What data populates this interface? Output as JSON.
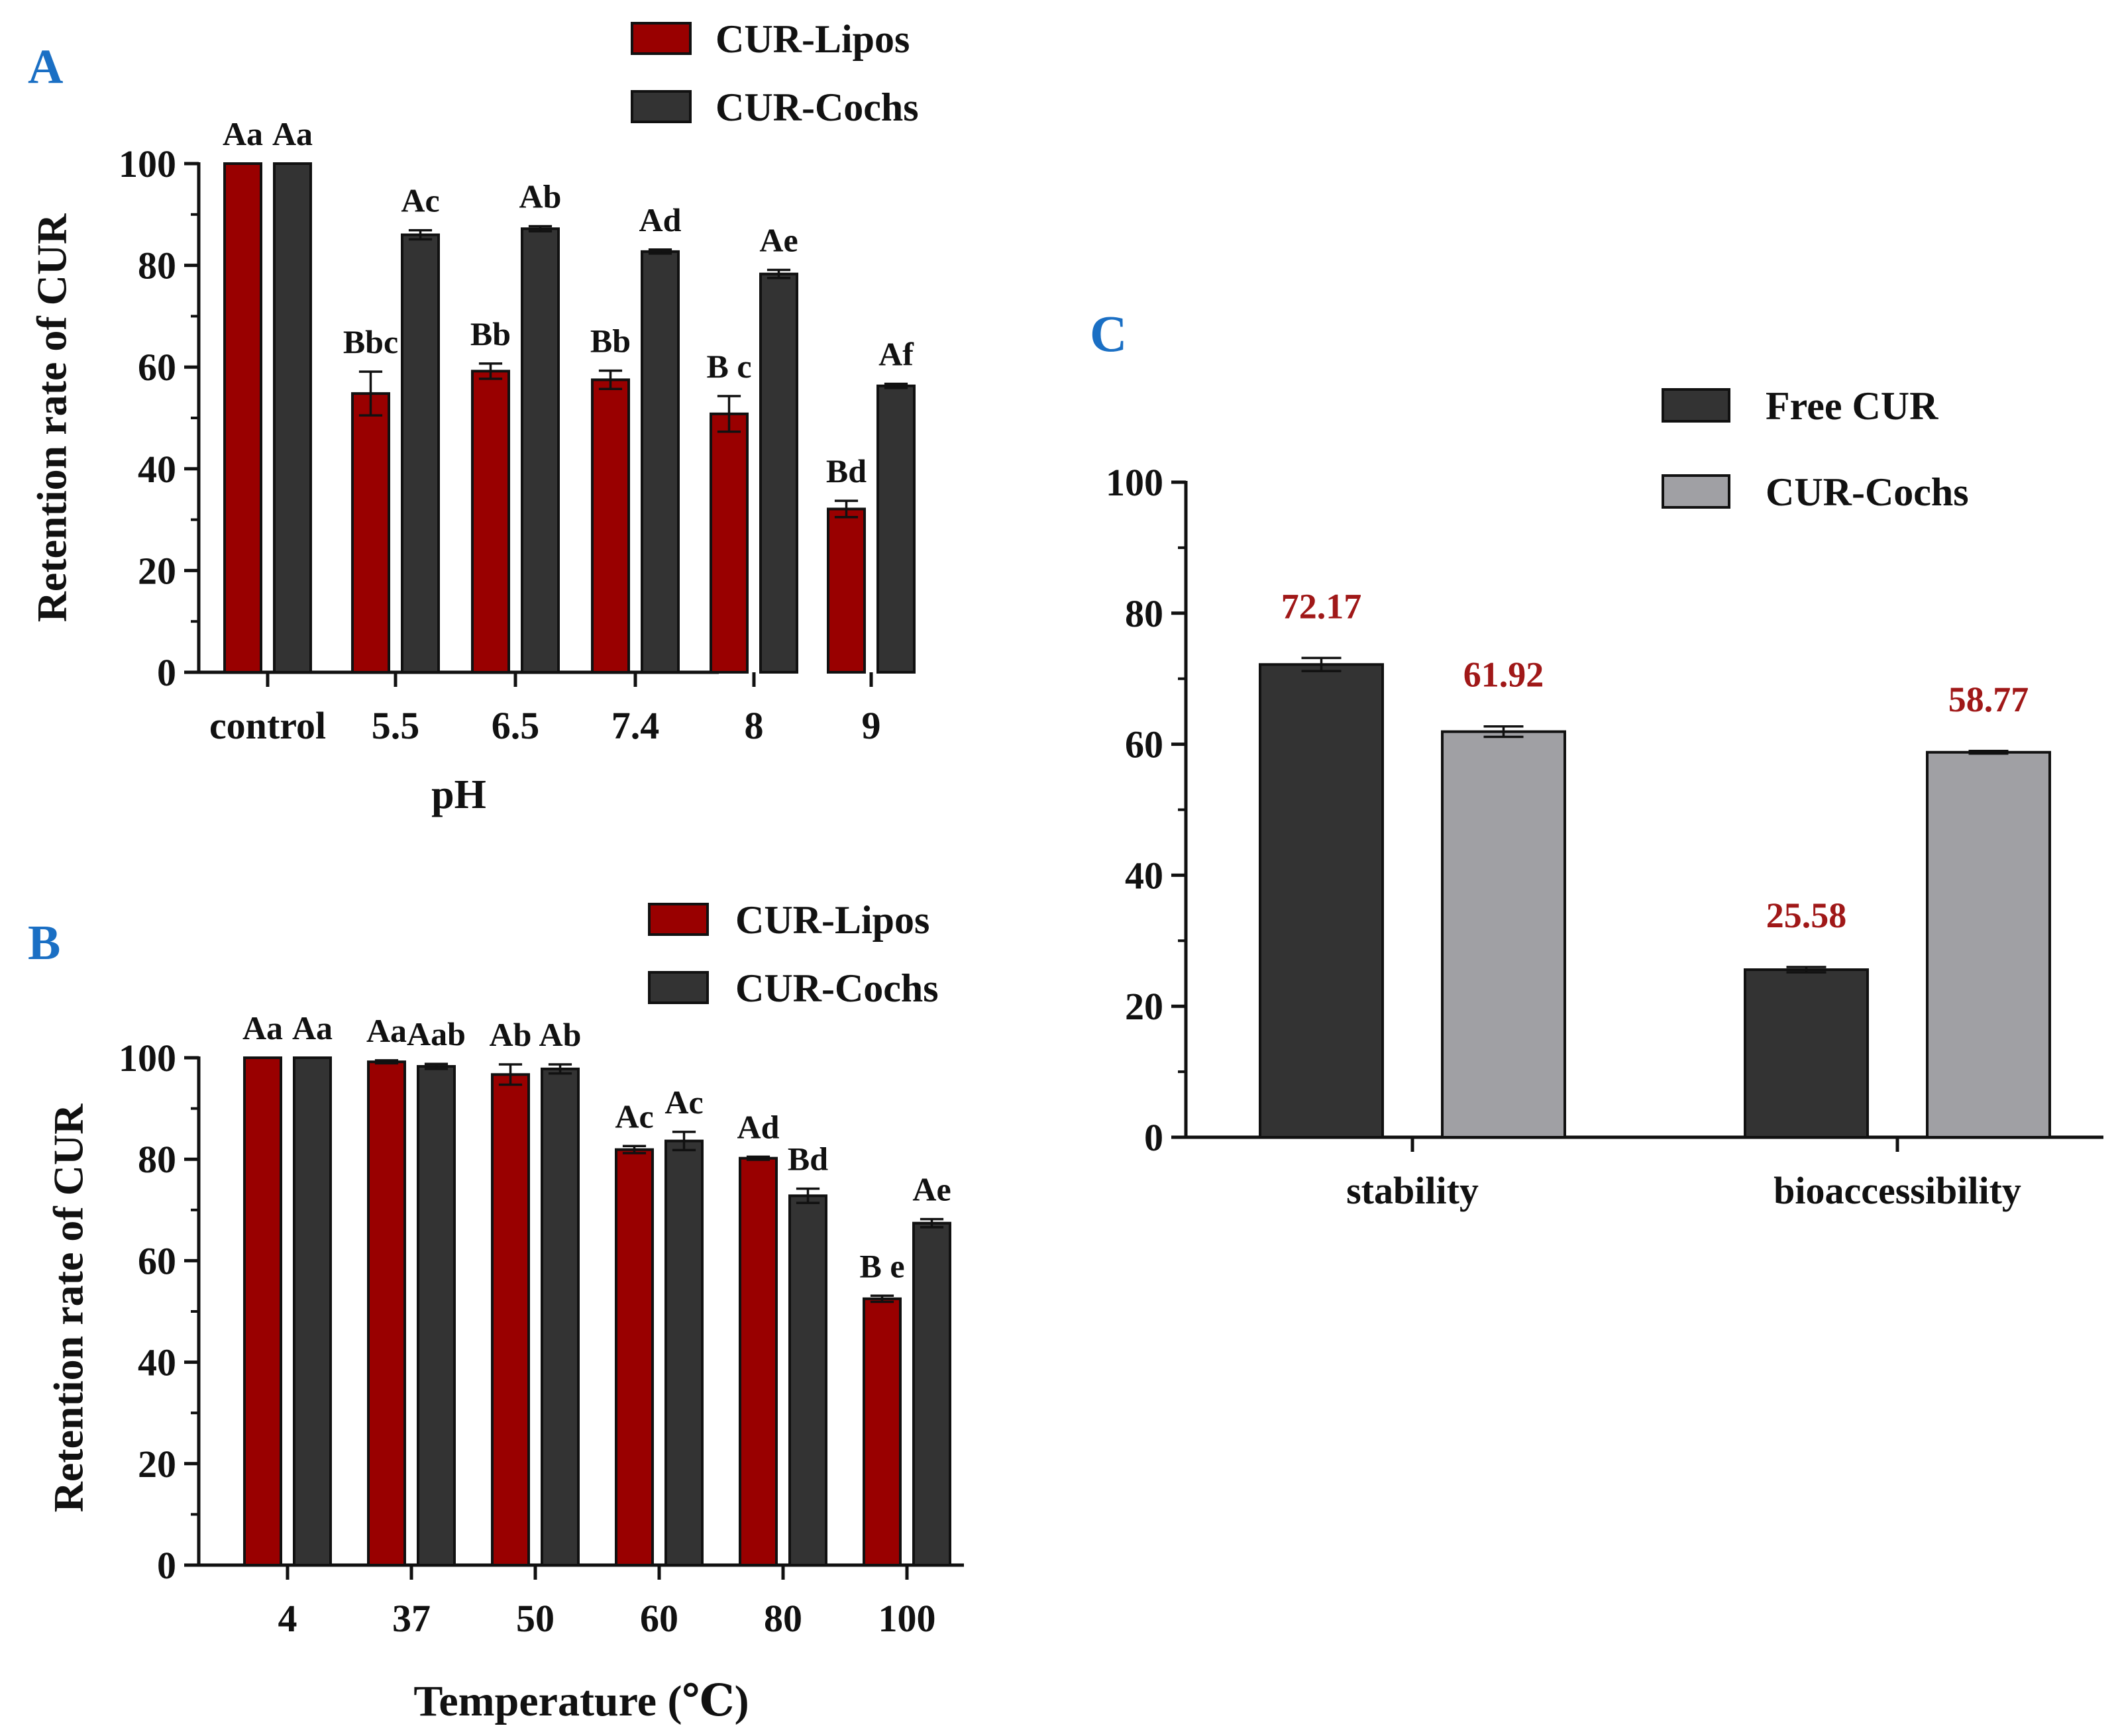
{
  "chart_data": [
    {
      "panel_label": "A",
      "type": "bar",
      "ylabel": "Retention rate of CUR",
      "xlabel": "pH",
      "categories": [
        "control",
        "5.5",
        "6.5",
        "7.4",
        "8",
        "9"
      ],
      "ylim": [
        0,
        100
      ],
      "yticks": [
        0,
        20,
        40,
        60,
        80,
        100
      ],
      "legend_position": "top-right",
      "series": [
        {
          "name": "CUR-Lipos",
          "color": "#990000",
          "values": [
            100,
            54.8,
            59.2,
            57.5,
            50.8,
            32.1
          ],
          "errors": [
            0,
            4.3,
            1.5,
            1.8,
            3.5,
            1.6
          ],
          "letters": [
            "Aa",
            "Bbc",
            "Bb",
            "Bb",
            "B c",
            "Bd"
          ]
        },
        {
          "name": "CUR-Cochs",
          "color": "#333333",
          "values": [
            100,
            86.0,
            87.2,
            82.7,
            78.3,
            56.3
          ],
          "errors": [
            0,
            0.9,
            0.5,
            0.4,
            0.8,
            0.4
          ],
          "letters": [
            "Aa",
            "Ac",
            "Ab",
            "Ad",
            "Ae",
            "Af"
          ]
        }
      ]
    },
    {
      "panel_label": "B",
      "type": "bar",
      "ylabel": "Retention rate of CUR",
      "xlabel": "Temperature (℃)",
      "categories": [
        "4",
        "37",
        "50",
        "60",
        "80",
        "100"
      ],
      "ylim": [
        0,
        100
      ],
      "yticks": [
        0,
        20,
        40,
        60,
        80,
        100
      ],
      "legend_position": "top-right",
      "series": [
        {
          "name": "CUR-Lipos",
          "color": "#990000",
          "values": [
            100,
            99.2,
            96.7,
            81.9,
            80.2,
            52.5
          ],
          "errors": [
            0,
            0.3,
            2.0,
            0.7,
            0.3,
            0.6
          ],
          "letters": [
            "Aa",
            "Aa",
            "Ab",
            "Ac",
            "Ad",
            "B e"
          ]
        },
        {
          "name": "CUR-Cochs",
          "color": "#333333",
          "values": [
            100,
            98.3,
            97.8,
            83.6,
            72.8,
            67.4
          ],
          "errors": [
            0,
            0.5,
            0.9,
            1.8,
            1.4,
            0.8
          ],
          "letters": [
            "Aa",
            "Aab",
            "Ab",
            "Ac",
            "Bd",
            "Ae"
          ]
        }
      ]
    },
    {
      "panel_label": "C",
      "type": "bar",
      "ylabel": "",
      "xlabel": "",
      "categories": [
        "stability",
        "bioaccessibility"
      ],
      "ylim": [
        0,
        100
      ],
      "yticks": [
        0,
        20,
        40,
        60,
        80,
        100
      ],
      "legend_position": "top-right",
      "series": [
        {
          "name": "Free CUR",
          "color": "#333333",
          "values": [
            72.17,
            25.58
          ],
          "errors": [
            1.0,
            0.4
          ],
          "labels": [
            "72.17",
            "25.58"
          ]
        },
        {
          "name": "CUR-Cochs",
          "color": "#a0a0a4",
          "values": [
            61.92,
            58.77
          ],
          "errors": [
            0.8,
            0.2
          ],
          "labels": [
            "61.92",
            "58.77"
          ]
        }
      ]
    }
  ],
  "colors": {
    "panel_label": "#1a6fc4",
    "value_label": "#a01818",
    "text": "#111111"
  }
}
